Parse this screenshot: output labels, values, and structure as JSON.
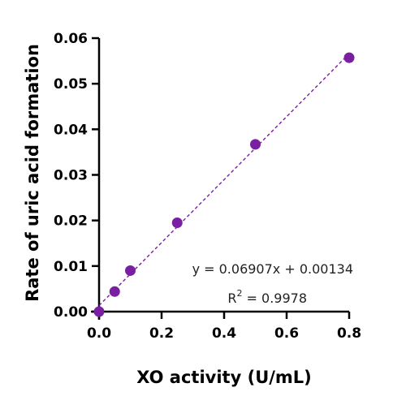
{
  "chart_data": {
    "type": "scatter",
    "title": "",
    "xlabel": "XO activity (U/mL)",
    "ylabel": "Rate of uric acid formation",
    "xlim": [
      0,
      0.8
    ],
    "ylim": [
      0,
      0.06
    ],
    "x_ticks": [
      "0.0",
      "0.2",
      "0.4",
      "0.6",
      "0.8"
    ],
    "y_ticks": [
      "0.00",
      "0.01",
      "0.02",
      "0.03",
      "0.04",
      "0.05",
      "0.06"
    ],
    "grid": false,
    "legend": "none",
    "series": [
      {
        "color": "#7b1fa2",
        "points": [
          {
            "x": 0.0,
            "y": 0.0
          },
          {
            "x": 0.05,
            "y": 0.0044
          },
          {
            "x": 0.1,
            "y": 0.009
          },
          {
            "x": 0.25,
            "y": 0.0195
          },
          {
            "x": 0.5,
            "y": 0.0367
          },
          {
            "x": 0.8,
            "y": 0.0557
          }
        ]
      }
    ],
    "fit_line": {
      "slope": 0.06907,
      "intercept": 0.00134,
      "x_range": [
        0,
        0.8
      ],
      "style": "dashed",
      "color": "#7b1fa2"
    },
    "annotations": {
      "equation": "y = 0.06907x + 0.00134",
      "r_squared_prefix": "R",
      "r_squared_sup": "2",
      "r_squared_value": " = 0.9978"
    }
  }
}
